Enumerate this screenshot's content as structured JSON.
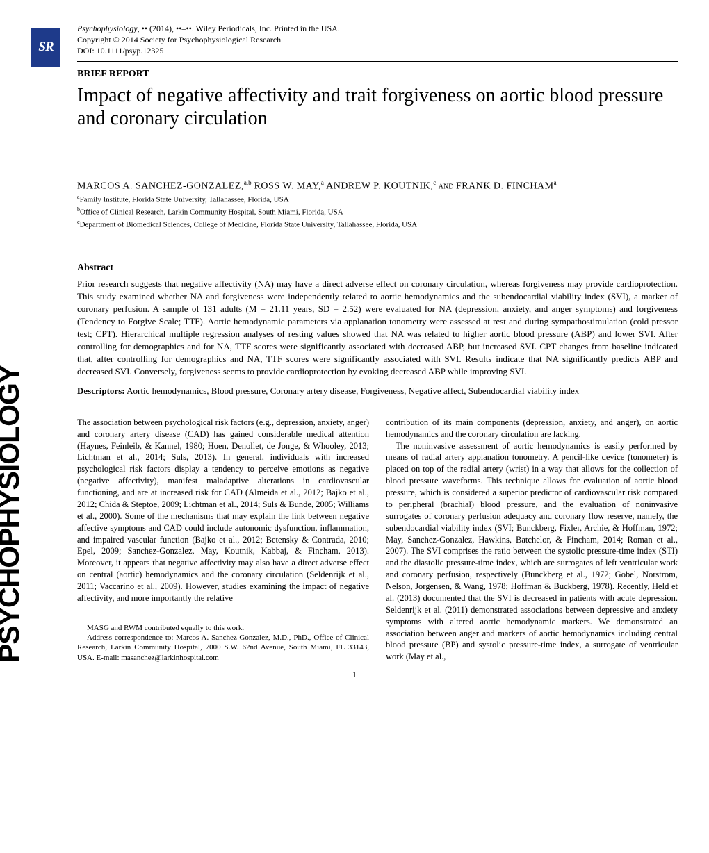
{
  "journal": {
    "name": "Psychophysiology",
    "citation": ", •• (2014), ••–••. Wiley Periodicals, Inc. Printed in the USA.",
    "copyright": "Copyright © 2014 Society for Psychophysiological Research",
    "doi": "DOI: 10.1111/psyp.12325"
  },
  "logo_text": "SR",
  "section_label": "BRIEF REPORT",
  "title": "Impact of negative affectivity and trait forgiveness on aortic blood pressure and coronary circulation",
  "authors_line_1": "MARCOS A. SANCHEZ-GONZALEZ,",
  "authors_sup_1": "a,b",
  "authors_line_2": " ROSS W. MAY,",
  "authors_sup_2": "a",
  "authors_line_3": " ANDREW P. KOUTNIK,",
  "authors_sup_3": "c",
  "authors_and": " and ",
  "authors_line_4": "FRANK D. FINCHAM",
  "authors_sup_4": "a",
  "affiliations": {
    "a": "Family Institute, Florida State University, Tallahassee, Florida, USA",
    "b": "Office of Clinical Research, Larkin Community Hospital, South Miami, Florida, USA",
    "c": "Department of Biomedical Sciences, College of Medicine, Florida State University, Tallahassee, Florida, USA"
  },
  "abstract_heading": "Abstract",
  "abstract": "Prior research suggests that negative affectivity (NA) may have a direct adverse effect on coronary circulation, whereas forgiveness may provide cardioprotection. This study examined whether NA and forgiveness were independently related to aortic hemodynamics and the subendocardial viability index (SVI), a marker of coronary perfusion. A sample of 131 adults (M = 21.11 years, SD = 2.52) were evaluated for NA (depression, anxiety, and anger symptoms) and forgiveness (Tendency to Forgive Scale; TTF). Aortic hemodynamic parameters via applanation tonometry were assessed at rest and during sympathostimulation (cold pressor test; CPT). Hierarchical multiple regression analyses of resting values showed that NA was related to higher aortic blood pressure (ABP) and lower SVI. After controlling for demographics and for NA, TTF scores were significantly associated with decreased ABP, but increased SVI. CPT changes from baseline indicated that, after controlling for demographics and NA, TTF scores were significantly associated with SVI. Results indicate that NA significantly predicts ABP and decreased SVI. Conversely, forgiveness seems to provide cardioprotection by evoking decreased ABP while improving SVI.",
  "descriptors_label": "Descriptors:",
  "descriptors": " Aortic hemodynamics, Blood pressure, Coronary artery disease, Forgiveness, Negative affect, Subendocardial viability index",
  "vertical_title": "PSYCHOPHYSIOLOGY",
  "body": {
    "col1_p1": "The association between psychological risk factors (e.g., depression, anxiety, anger) and coronary artery disease (CAD) has gained considerable medical attention (Haynes, Feinleib, & Kannel, 1980; Hoen, Denollet, de Jonge, & Whooley, 2013; Lichtman et al., 2014; Suls, 2013). In general, individuals with increased psychological risk factors display a tendency to perceive emotions as negative (negative affectivity), manifest maladaptive alterations in cardiovascular functioning, and are at increased risk for CAD (Almeida et al., 2012; Bajko et al., 2012; Chida & Steptoe, 2009; Lichtman et al., 2014; Suls & Bunde, 2005; Williams et al., 2000). Some of the mechanisms that may explain the link between negative affective symptoms and CAD could include autonomic dysfunction, inflammation, and impaired vascular function (Bajko et al., 2012; Betensky & Contrada, 2010; Epel, 2009; Sanchez-Gonzalez, May, Koutnik, Kabbaj, & Fincham, 2013). Moreover, it appears that negative affectivity may also have a direct adverse effect on central (aortic) hemodynamics and the coronary circulation (Seldenrijk et al., 2011; Vaccarino et al., 2009). However, studies examining the impact of negative affectivity, and more importantly the relative",
    "col2_p1": "contribution of its main components (depression, anxiety, and anger), on aortic hemodynamics and the coronary circulation are lacking.",
    "col2_p2": "The noninvasive assessment of aortic hemodynamics is easily performed by means of radial artery applanation tonometry. A pencil-like device (tonometer) is placed on top of the radial artery (wrist) in a way that allows for the collection of blood pressure waveforms. This technique allows for evaluation of aortic blood pressure, which is considered a superior predictor of cardiovascular risk compared to peripheral (brachial) blood pressure, and the evaluation of noninvasive surrogates of coronary perfusion adequacy and coronary flow reserve, namely, the subendocardial viability index (SVI; Bunckberg, Fixler, Archie, & Hoffman, 1972; May, Sanchez-Gonzalez, Hawkins, Batchelor, & Fincham, 2014; Roman et al., 2007). The SVI comprises the ratio between the systolic pressure-time index (STI) and the diastolic pressure-time index, which are surrogates of left ventricular work and coronary perfusion, respectively (Bunckberg et al., 1972; Gobel, Norstrom, Nelson, Jorgensen, & Wang, 1978; Hoffman & Buckberg, 1978). Recently, Held et al. (2013) documented that the SVI is decreased in patients with acute depression. Seldenrijk et al. (2011) demonstrated associations between depressive and anxiety symptoms with altered aortic hemodynamic markers. We demonstrated an association between anger and markers of aortic hemodynamics including central blood pressure (BP) and systolic pressure-time index, a surrogate of ventricular work (May et al.,"
  },
  "footnotes": {
    "f1": "MASG and RWM contributed equally to this work.",
    "f2": "Address correspondence to: Marcos A. Sanchez-Gonzalez, M.D., PhD., Office of Clinical Research, Larkin Community Hospital, 7000 S.W. 62nd Avenue, South Miami, FL 33143, USA. E-mail: masanchez@larkinhospital.com"
  },
  "page_number": "1"
}
